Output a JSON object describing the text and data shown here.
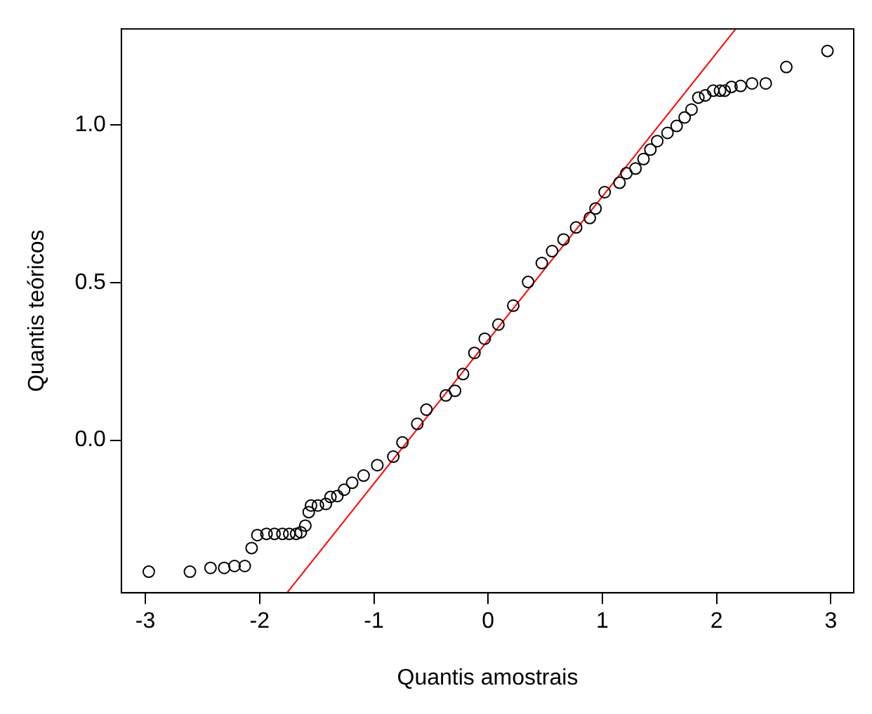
{
  "chart_data": {
    "type": "scatter",
    "xlabel": "Quantis amostrais",
    "ylabel": "Quantis teóricos",
    "series": [
      {
        "color": "#000000",
        "marker": "circle",
        "x": [
          -2.97,
          -2.61,
          -2.43,
          -2.31,
          -2.22,
          -2.13,
          -2.07,
          -2.02,
          -1.94,
          -1.87,
          -1.8,
          -1.74,
          -1.68,
          -1.64,
          -1.6,
          -1.57,
          -1.55,
          -1.49,
          -1.42,
          -1.38,
          -1.32,
          -1.26,
          -1.19,
          -1.09,
          -0.97,
          -0.83,
          -0.75,
          -0.62,
          -0.54,
          -0.37,
          -0.29,
          -0.22,
          -0.12,
          -0.03,
          0.09,
          0.22,
          0.35,
          0.47,
          0.56,
          0.66,
          0.77,
          0.89,
          0.94,
          1.02,
          1.15,
          1.21,
          1.29,
          1.36,
          1.42,
          1.48,
          1.57,
          1.65,
          1.72,
          1.78,
          1.84,
          1.9,
          1.97,
          2.03,
          2.07,
          2.13,
          2.21,
          2.31,
          2.43,
          2.61,
          2.97
        ],
        "values": [
          -0.417,
          -0.417,
          -0.405,
          -0.405,
          -0.399,
          -0.399,
          -0.342,
          -0.301,
          -0.297,
          -0.297,
          -0.297,
          -0.297,
          -0.297,
          -0.292,
          -0.271,
          -0.228,
          -0.207,
          -0.207,
          -0.202,
          -0.18,
          -0.177,
          -0.157,
          -0.135,
          -0.112,
          -0.079,
          -0.052,
          -0.007,
          0.052,
          0.097,
          0.142,
          0.157,
          0.21,
          0.277,
          0.322,
          0.367,
          0.427,
          0.502,
          0.562,
          0.6,
          0.637,
          0.675,
          0.705,
          0.735,
          0.787,
          0.817,
          0.847,
          0.862,
          0.892,
          0.922,
          0.949,
          0.975,
          0.997,
          1.024,
          1.049,
          1.087,
          1.094,
          1.109,
          1.109,
          1.109,
          1.121,
          1.124,
          1.132,
          1.132,
          1.184,
          1.235
        ]
      },
      {
        "type": "line",
        "color": "#ff0000",
        "marker": "none",
        "x": [
          -1.76,
          2.167
        ],
        "values": [
          -0.484,
          1.305
        ]
      }
    ],
    "xlim": [
      -3.21,
      3.2
    ],
    "ylim": [
      -0.484,
      1.305
    ],
    "xticks": [
      -3,
      -2,
      -1,
      0,
      1,
      2,
      3
    ],
    "yticks": [
      {
        "value": 0,
        "label": "0.0"
      },
      {
        "value": 0.5,
        "label": "0.5"
      },
      {
        "value": 1,
        "label": "1.0"
      }
    ]
  }
}
